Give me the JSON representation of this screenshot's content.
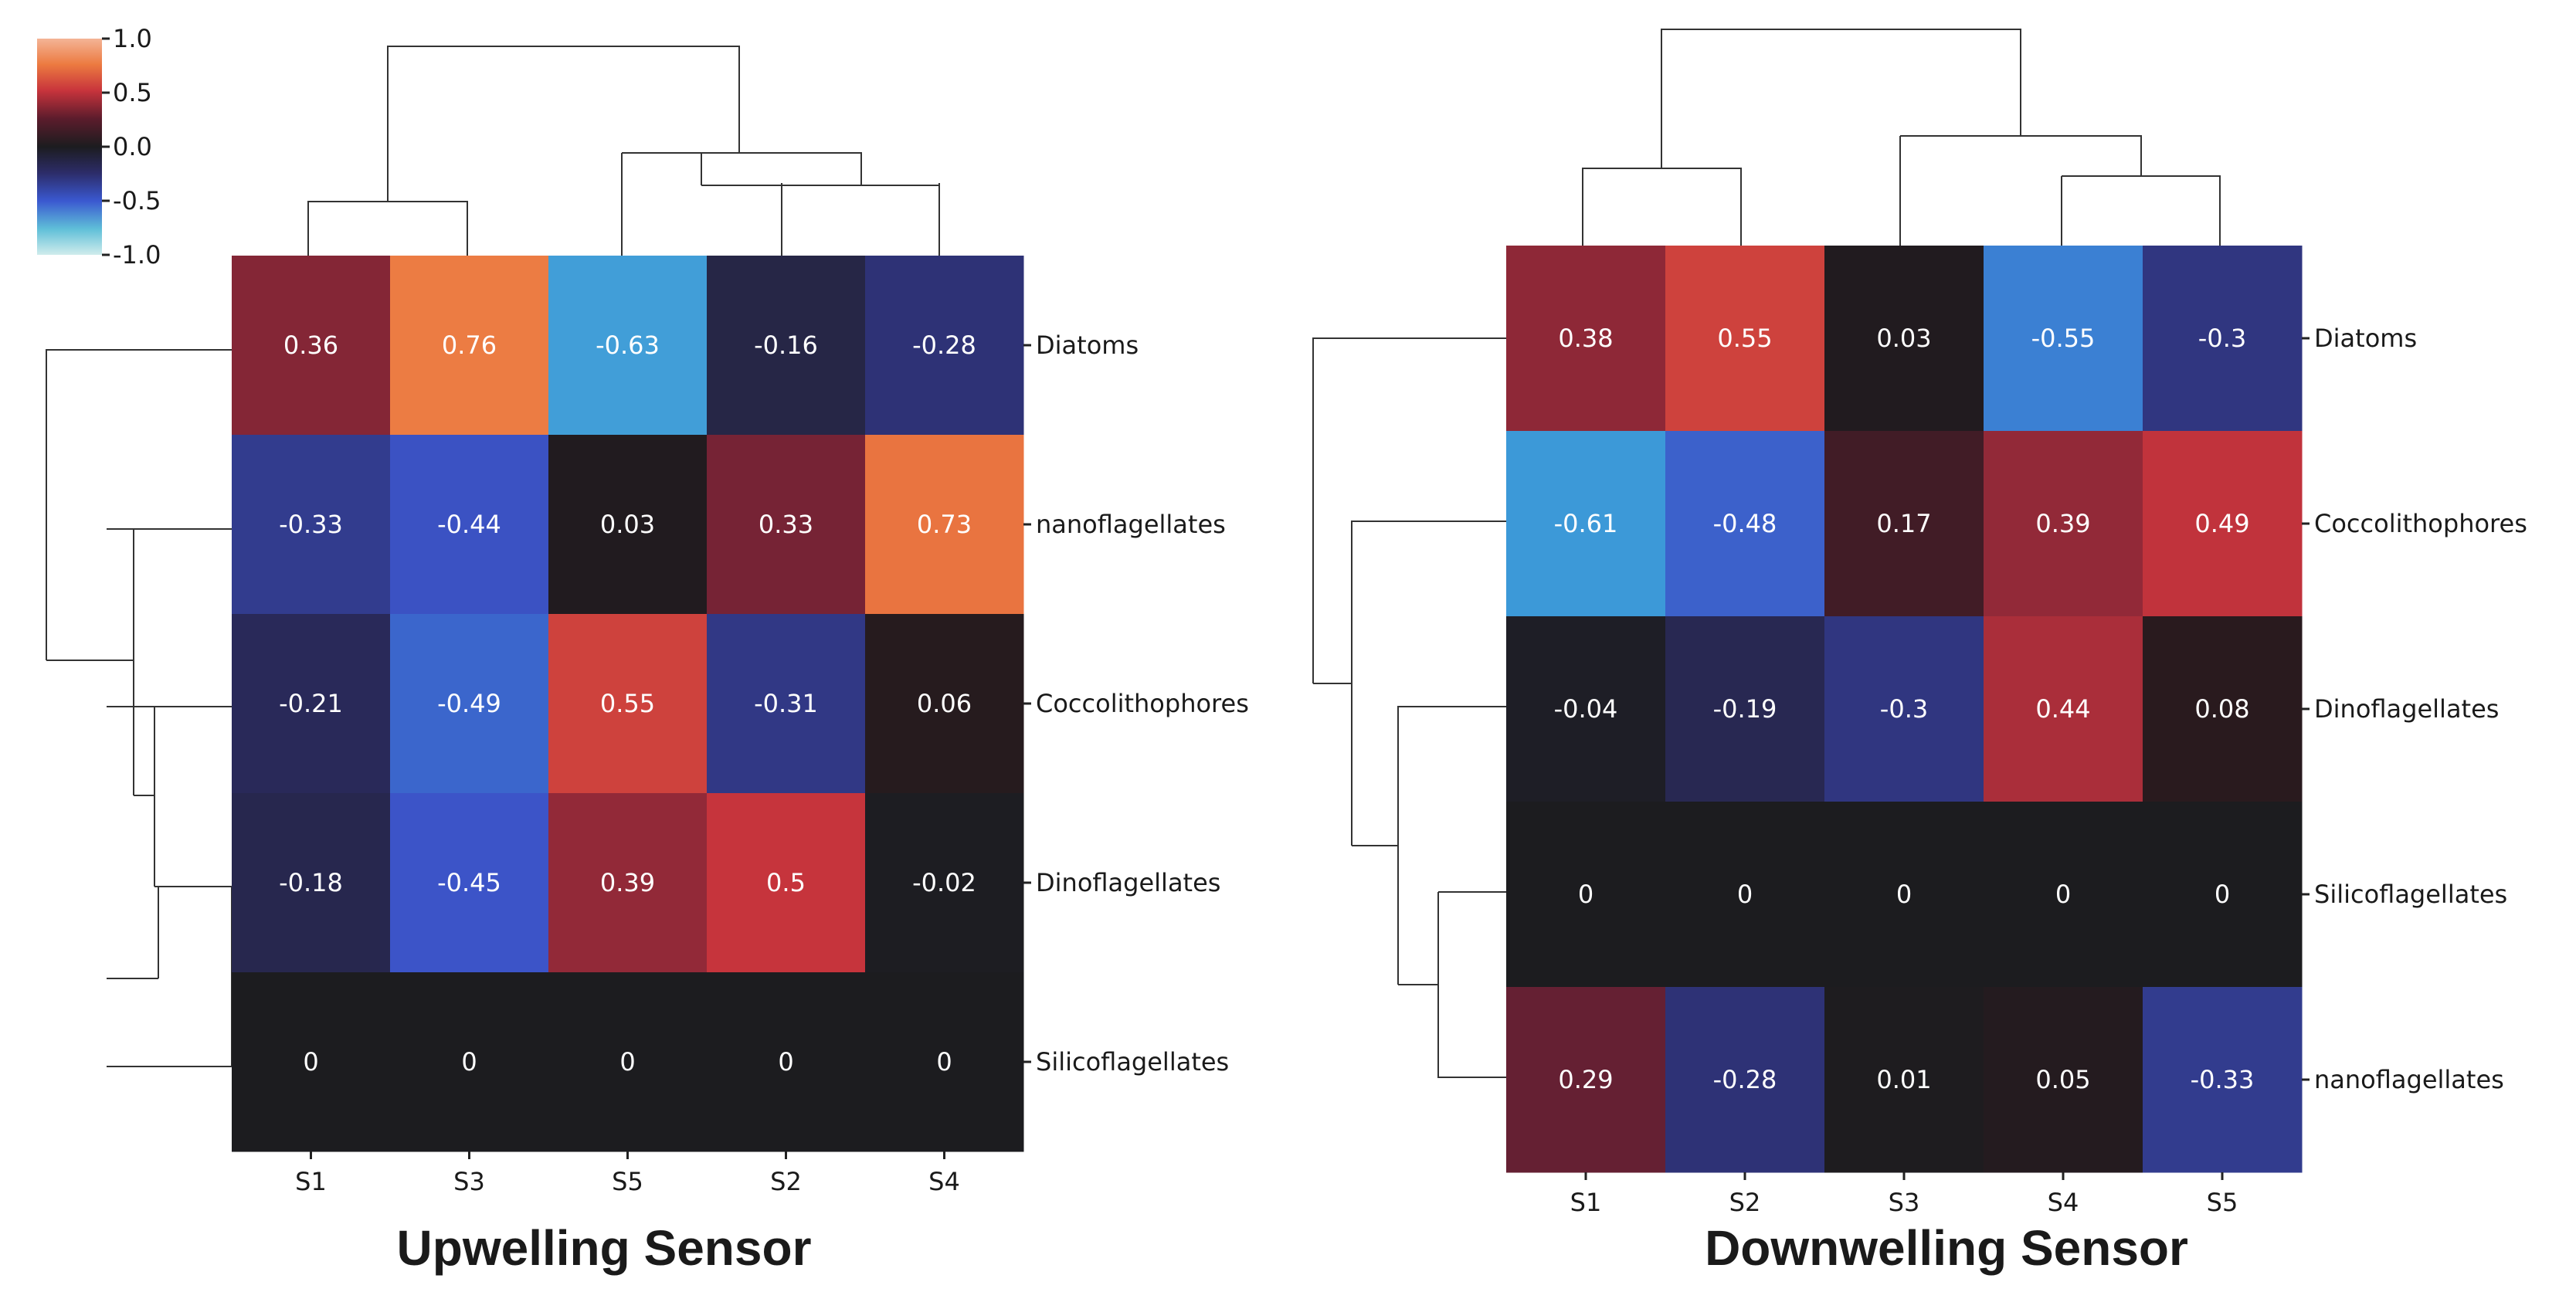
{
  "colorbar": {
    "ticks": [
      "1.0",
      "0.5",
      "0.0",
      "-0.5",
      "-1.0"
    ],
    "tick_values": [
      1.0,
      0.5,
      0.0,
      -0.5,
      -1.0
    ],
    "range": [
      -1.0,
      1.0
    ]
  },
  "chart_data": [
    {
      "type": "heatmap",
      "title": "Upwelling Sensor",
      "columns": [
        "S1",
        "S3",
        "S5",
        "S2",
        "S4"
      ],
      "rows": [
        "Diatoms",
        "nanoflagellates",
        "Coccolithophores",
        "Dinoflagellates",
        "Silicoflagellates"
      ],
      "values": [
        [
          0.36,
          0.76,
          -0.63,
          -0.16,
          -0.28
        ],
        [
          -0.33,
          -0.44,
          0.03,
          0.33,
          0.73
        ],
        [
          -0.21,
          -0.49,
          0.55,
          -0.31,
          0.06
        ],
        [
          -0.18,
          -0.45,
          0.39,
          0.5,
          -0.02
        ],
        [
          0,
          0,
          0,
          0,
          0
        ]
      ],
      "labels": [
        [
          "0.36",
          "0.76",
          "-0.63",
          "-0.16",
          "-0.28"
        ],
        [
          "-0.33",
          "-0.44",
          "0.03",
          "0.33",
          "0.73"
        ],
        [
          "-0.21",
          "-0.49",
          "0.55",
          "-0.31",
          "0.06"
        ],
        [
          "-0.18",
          "-0.45",
          "0.39",
          "0.5",
          "-0.02"
        ],
        [
          "0",
          "0",
          "0",
          "0",
          "0"
        ]
      ],
      "vmin": -1.0,
      "vmax": 1.0
    },
    {
      "type": "heatmap",
      "title": "Downwelling Sensor",
      "columns": [
        "S1",
        "S2",
        "S3",
        "S4",
        "S5"
      ],
      "rows": [
        "Diatoms",
        "Coccolithophores",
        "Dinoflagellates",
        "Silicoflagellates",
        "nanoflagellates"
      ],
      "values": [
        [
          0.38,
          0.55,
          0.03,
          -0.55,
          -0.3
        ],
        [
          -0.61,
          -0.48,
          0.17,
          0.39,
          0.49
        ],
        [
          -0.04,
          -0.19,
          -0.3,
          0.44,
          0.08
        ],
        [
          0,
          0,
          0,
          0,
          0
        ],
        [
          0.29,
          -0.28,
          0.01,
          0.05,
          -0.33
        ]
      ],
      "labels": [
        [
          "0.38",
          "0.55",
          "0.03",
          "-0.55",
          "-0.3"
        ],
        [
          "-0.61",
          "-0.48",
          "0.17",
          "0.39",
          "0.49"
        ],
        [
          "-0.04",
          "-0.19",
          "-0.3",
          "0.44",
          "0.08"
        ],
        [
          "0",
          "0",
          "0",
          "0",
          "0"
        ],
        [
          "0.29",
          "-0.28",
          "0.01",
          "0.05",
          "-0.33"
        ]
      ],
      "vmin": -1.0,
      "vmax": 1.0
    }
  ]
}
